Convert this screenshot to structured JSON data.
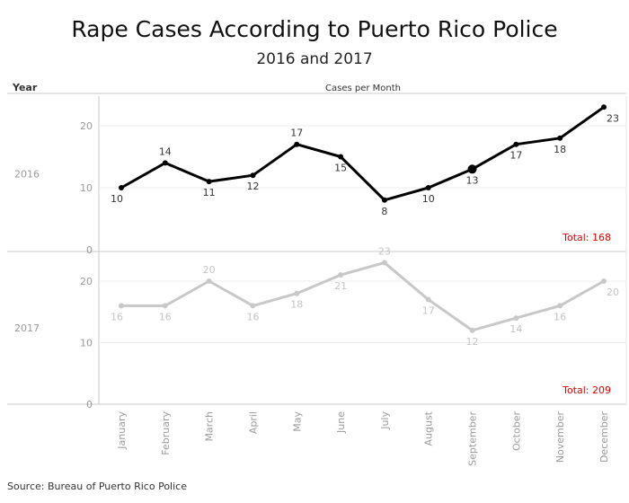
{
  "header": {
    "title": "Rape Cases According to Puerto Rico Police",
    "subtitle": "2016 and 2017"
  },
  "footer": {
    "source": "Source: Bureau of Puerto Rico Police"
  },
  "chart_data": {
    "type": "line",
    "title": "Rape Cases According to Puerto Rico Police",
    "subtitle": "2016 and 2017",
    "row_header": "Year",
    "column_header": "Cases per Month",
    "categories": [
      "January",
      "February",
      "March",
      "April",
      "May",
      "June",
      "July",
      "August",
      "September",
      "October",
      "November",
      "December"
    ],
    "ylim": [
      0,
      25
    ],
    "yticks": [
      0,
      10,
      20
    ],
    "grid": true,
    "panels": [
      {
        "label": "2016",
        "color": "#000000",
        "label_color": "#333333",
        "values": [
          10,
          14,
          11,
          12,
          17,
          15,
          8,
          10,
          13,
          17,
          18,
          23
        ],
        "total_label": "Total: 168",
        "highlight_index": 8
      },
      {
        "label": "2017",
        "color": "#c8c8c8",
        "label_color": "#c4c4c4",
        "values": [
          16,
          16,
          20,
          16,
          18,
          21,
          23,
          17,
          12,
          14,
          16,
          20
        ],
        "total_label": "Total: 209",
        "highlight_index": null
      }
    ],
    "total_color": "#e00000"
  }
}
